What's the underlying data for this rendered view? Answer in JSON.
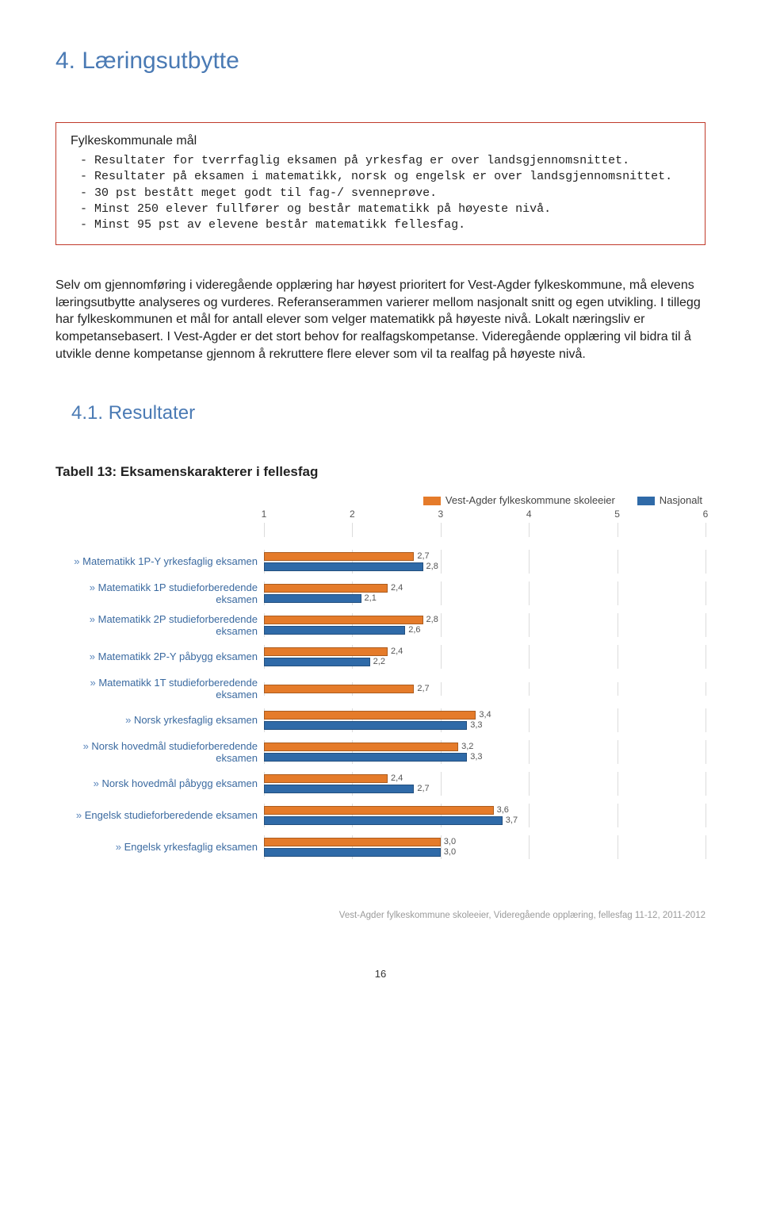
{
  "section": {
    "heading": "4. Læringsutbytte"
  },
  "box": {
    "title": "Fylkeskommunale mål",
    "items": [
      "Resultater for tverrfaglig eksamen på yrkesfag er over landsgjennomsnittet.",
      "Resultater på eksamen i matematikk, norsk og engelsk er over landsgjennomsnittet.",
      "30 pst bestått meget godt til fag-/ svenneprøve.",
      "Minst 250 elever fullfører og består matematikk på høyeste nivå.",
      "Minst 95 pst av elevene består matematikk fellesfag."
    ]
  },
  "body": "Selv om gjennomføring i videregående opplæring har høyest prioritert for Vest-Agder fylkeskommune, må elevens læringsutbytte analyseres og vurderes. Referanserammen varierer mellom nasjonalt snitt og egen utvikling. I tillegg har fylkeskommunen et mål for antall elever som velger matematikk på høyeste nivå. Lokalt næringsliv er kompetansebasert. I Vest-Agder er det stort behov for realfagskompetanse. Videregående opplæring vil bidra til å utvikle denne kompetanse gjennom å rekruttere flere elever som vil ta realfag på høyeste nivå.",
  "subsection": {
    "heading": "4.1.    Resultater"
  },
  "table_heading": "Tabell 13: Eksamenskarakterer i fellesfag",
  "chart": {
    "type": "horizontal-bar-grouped",
    "x_min": 1,
    "x_max": 6,
    "x_ticks": [
      1,
      2,
      3,
      4,
      5,
      6
    ],
    "grid_color": "#dcdcdc",
    "label_color": "#3b6aa0",
    "value_fontsize": 11,
    "legend": [
      {
        "label": "Vest-Agder fylkeskommune skoleeier",
        "color": "#e57b2a"
      },
      {
        "label": "Nasjonalt",
        "color": "#2f6aa8"
      }
    ],
    "rows": [
      {
        "label": "Matematikk 1P-Y yrkesfaglig eksamen",
        "series": [
          {
            "value": 2.7,
            "text": "2,7",
            "color": "#e57b2a"
          },
          {
            "value": 2.8,
            "text": "2,8",
            "color": "#2f6aa8"
          }
        ]
      },
      {
        "label": "Matematikk 1P studieforberedende eksamen",
        "series": [
          {
            "value": 2.4,
            "text": "2,4",
            "color": "#e57b2a"
          },
          {
            "value": 2.1,
            "text": "2,1",
            "color": "#2f6aa8"
          }
        ]
      },
      {
        "label": "Matematikk 2P studieforberedende eksamen",
        "series": [
          {
            "value": 2.8,
            "text": "2,8",
            "color": "#e57b2a"
          },
          {
            "value": 2.6,
            "text": "2,6",
            "color": "#2f6aa8"
          }
        ]
      },
      {
        "label": "Matematikk 2P-Y påbygg eksamen",
        "series": [
          {
            "value": 2.4,
            "text": "2,4",
            "color": "#e57b2a"
          },
          {
            "value": 2.2,
            "text": "2,2",
            "color": "#2f6aa8"
          }
        ]
      },
      {
        "label": "Matematikk 1T studieforberedende eksamen",
        "series": [
          {
            "value": 2.7,
            "text": "2,7",
            "color": "#e57b2a"
          }
        ]
      },
      {
        "label": "Norsk yrkesfaglig eksamen",
        "series": [
          {
            "value": 3.4,
            "text": "3,4",
            "color": "#e57b2a"
          },
          {
            "value": 3.3,
            "text": "3,3",
            "color": "#2f6aa8"
          }
        ]
      },
      {
        "label": "Norsk hovedmål studieforberedende eksamen",
        "series": [
          {
            "value": 3.2,
            "text": "3,2",
            "color": "#e57b2a"
          },
          {
            "value": 3.3,
            "text": "3,3",
            "color": "#2f6aa8"
          }
        ]
      },
      {
        "label": "Norsk hovedmål påbygg eksamen",
        "series": [
          {
            "value": 2.4,
            "text": "2,4",
            "color": "#e57b2a"
          },
          {
            "value": 2.7,
            "text": "2,7",
            "color": "#2f6aa8"
          }
        ]
      },
      {
        "label": "Engelsk studieforberedende eksamen",
        "series": [
          {
            "value": 3.6,
            "text": "3,6",
            "color": "#e57b2a"
          },
          {
            "value": 3.7,
            "text": "3,7",
            "color": "#2f6aa8"
          }
        ]
      },
      {
        "label": "Engelsk yrkesfaglig eksamen",
        "series": [
          {
            "value": 3.0,
            "text": "3,0",
            "color": "#e57b2a"
          },
          {
            "value": 3.0,
            "text": "3,0",
            "color": "#2f6aa8"
          }
        ]
      }
    ]
  },
  "footer_note": "Vest-Agder fylkeskommune skoleeier, Videregående opplæring, fellesfag 11-12, 2011-2012",
  "page_number": "16"
}
